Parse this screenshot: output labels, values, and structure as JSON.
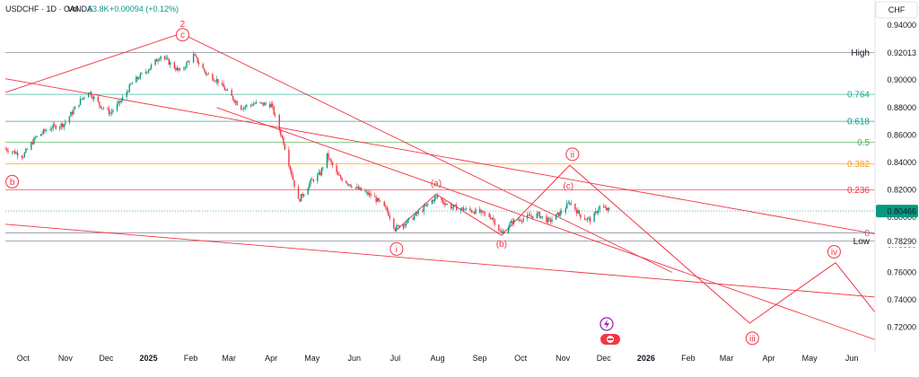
{
  "header": {
    "symbol": "USDCHF · 1D · OANDA",
    "vol_label": "Vol",
    "vol_value": "53.8K",
    "change": "+0.00094 (+0.12%)"
  },
  "chart_data": {
    "type": "candlestick",
    "symbol": "USDCHF",
    "interval": "1D",
    "source": "OANDA",
    "currency": "CHF",
    "ylim": [
      0.7,
      0.948
    ],
    "y_ticks": [
      "0.94000",
      "0.92000",
      "0.90000",
      "0.88000",
      "0.86000",
      "0.84000",
      "0.82000",
      "0.80000",
      "0.78000",
      "0.76000",
      "0.74000",
      "0.72000"
    ],
    "x_ticks": [
      "Oct",
      "Nov",
      "Dec",
      "2025",
      "Feb",
      "Mar",
      "Apr",
      "May",
      "Jun",
      "Jul",
      "Aug",
      "Sep",
      "Oct",
      "Nov",
      "Dec",
      "2026",
      "Feb",
      "Mar",
      "Apr",
      "May",
      "Jun"
    ],
    "x_tick_dates": [
      "2024-10-01",
      "2024-11-01",
      "2024-12-01",
      "2025-01-01",
      "2025-02-01",
      "2025-03-01",
      "2025-04-01",
      "2025-05-01",
      "2025-06-01",
      "2025-07-01",
      "2025-08-01",
      "2025-09-01",
      "2025-10-01",
      "2025-11-01",
      "2025-12-01",
      "2026-01-01",
      "2026-02-01",
      "2026-03-01",
      "2026-04-01",
      "2026-05-01",
      "2026-06-01"
    ],
    "x_range": [
      "2024-09-18",
      "2026-06-18"
    ],
    "price_path": [
      [
        "2024-09-18",
        0.85
      ],
      [
        "2024-10-01",
        0.845
      ],
      [
        "2024-10-10",
        0.858
      ],
      [
        "2024-10-20",
        0.865
      ],
      [
        "2024-10-31",
        0.868
      ],
      [
        "2024-11-12",
        0.885
      ],
      [
        "2024-11-18",
        0.892
      ],
      [
        "2024-11-26",
        0.882
      ],
      [
        "2024-12-04",
        0.876
      ],
      [
        "2024-12-12",
        0.885
      ],
      [
        "2024-12-20",
        0.898
      ],
      [
        "2025-01-01",
        0.908
      ],
      [
        "2025-01-10",
        0.918
      ],
      [
        "2025-01-17",
        0.912
      ],
      [
        "2025-01-24",
        0.906
      ],
      [
        "2025-02-03",
        0.918
      ],
      [
        "2025-02-12",
        0.905
      ],
      [
        "2025-02-20",
        0.9
      ],
      [
        "2025-03-01",
        0.89
      ],
      [
        "2025-03-10",
        0.88
      ],
      [
        "2025-03-20",
        0.883
      ],
      [
        "2025-04-01",
        0.882
      ],
      [
        "2025-04-10",
        0.855
      ],
      [
        "2025-04-21",
        0.812
      ],
      [
        "2025-04-30",
        0.826
      ],
      [
        "2025-05-07",
        0.832
      ],
      [
        "2025-05-12",
        0.845
      ],
      [
        "2025-05-20",
        0.83
      ],
      [
        "2025-06-01",
        0.822
      ],
      [
        "2025-06-15",
        0.815
      ],
      [
        "2025-06-25",
        0.805
      ],
      [
        "2025-07-01",
        0.792
      ],
      [
        "2025-07-10",
        0.797
      ],
      [
        "2025-07-20",
        0.805
      ],
      [
        "2025-07-31",
        0.815
      ],
      [
        "2025-08-10",
        0.808
      ],
      [
        "2025-08-20",
        0.806
      ],
      [
        "2025-08-31",
        0.804
      ],
      [
        "2025-09-10",
        0.8
      ],
      [
        "2025-09-17",
        0.788
      ],
      [
        "2025-09-25",
        0.797
      ],
      [
        "2025-10-05",
        0.8
      ],
      [
        "2025-10-14",
        0.802
      ],
      [
        "2025-10-22",
        0.797
      ],
      [
        "2025-11-01",
        0.805
      ],
      [
        "2025-11-06",
        0.811
      ],
      [
        "2025-11-15",
        0.8
      ],
      [
        "2025-11-22",
        0.798
      ],
      [
        "2025-11-28",
        0.808
      ],
      [
        "2025-12-05",
        0.80466
      ]
    ],
    "fib_levels": [
      {
        "label": "High",
        "price": 0.92013,
        "value_label": "0.92013",
        "color": "#787b86"
      },
      {
        "label": "0.764",
        "price": 0.8896,
        "value_label": "",
        "color": "#22ab94"
      },
      {
        "label": "0.618",
        "price": 0.87,
        "value_label": "",
        "color": "#089981"
      },
      {
        "label": "0.5",
        "price": 0.8548,
        "value_label": "",
        "color": "#4caf50"
      },
      {
        "label": "0.382",
        "price": 0.839,
        "value_label": "",
        "color": "#ff9800"
      },
      {
        "label": "0.236",
        "price": 0.82,
        "value_label": "",
        "color": "#f23645"
      },
      {
        "label": "0",
        "price": 0.7888,
        "value_label": "",
        "color": "#787b86"
      },
      {
        "label": "Low",
        "price": 0.7829,
        "value_label": "0.78290",
        "color": "#787b86"
      }
    ],
    "last_price": {
      "value": "0.80466",
      "price": 0.80466,
      "color": "#089981"
    },
    "trendlines": [
      [
        [
          "2024-09-18",
          0.891
        ],
        [
          "2025-01-25",
          0.934
        ]
      ],
      [
        [
          "2025-01-25",
          0.934
        ],
        [
          "2026-01-20",
          0.76
        ]
      ],
      [
        [
          "2024-09-18",
          0.901
        ],
        [
          "2026-06-18",
          0.788
        ]
      ],
      [
        [
          "2024-09-18",
          0.795
        ],
        [
          "2026-06-18",
          0.742
        ]
      ],
      [
        [
          "2025-02-20",
          0.88
        ],
        [
          "2026-06-18",
          0.711
        ]
      ]
    ],
    "wave_path": [
      [
        "2025-07-01",
        0.79
      ],
      [
        "2025-07-31",
        0.817
      ],
      [
        "2025-09-17",
        0.787
      ],
      [
        "2025-11-06",
        0.838
      ],
      [
        "2026-03-18",
        0.723
      ],
      [
        "2026-05-20",
        0.767
      ],
      [
        "2026-06-18",
        0.731
      ]
    ],
    "wave_labels": [
      {
        "text": "2",
        "date": "2025-01-26",
        "price": 0.941,
        "circled": false,
        "size": 13
      },
      {
        "text": "c",
        "date": "2025-01-26",
        "price": 0.933,
        "circled": true
      },
      {
        "text": "b",
        "date": "2024-09-23",
        "price": 0.826,
        "circled": true
      },
      {
        "text": "(a)",
        "date": "2025-07-31",
        "price": 0.825,
        "circled": false
      },
      {
        "text": "(b)",
        "date": "2025-09-17",
        "price": 0.781,
        "circled": false
      },
      {
        "text": "(c)",
        "date": "2025-11-05",
        "price": 0.823,
        "circled": false
      },
      {
        "text": "i",
        "date": "2025-07-02",
        "price": 0.777,
        "circled": true
      },
      {
        "text": "ii",
        "date": "2025-11-08",
        "price": 0.846,
        "circled": true
      },
      {
        "text": "iii",
        "date": "2026-03-20",
        "price": 0.712,
        "circled": true
      },
      {
        "text": "iv",
        "date": "2026-05-19",
        "price": 0.775,
        "circled": true
      }
    ],
    "grid": false,
    "colors": {
      "up": "#089981",
      "down": "#f23645",
      "line": "#f23645",
      "wave_text": "#f23645"
    }
  }
}
